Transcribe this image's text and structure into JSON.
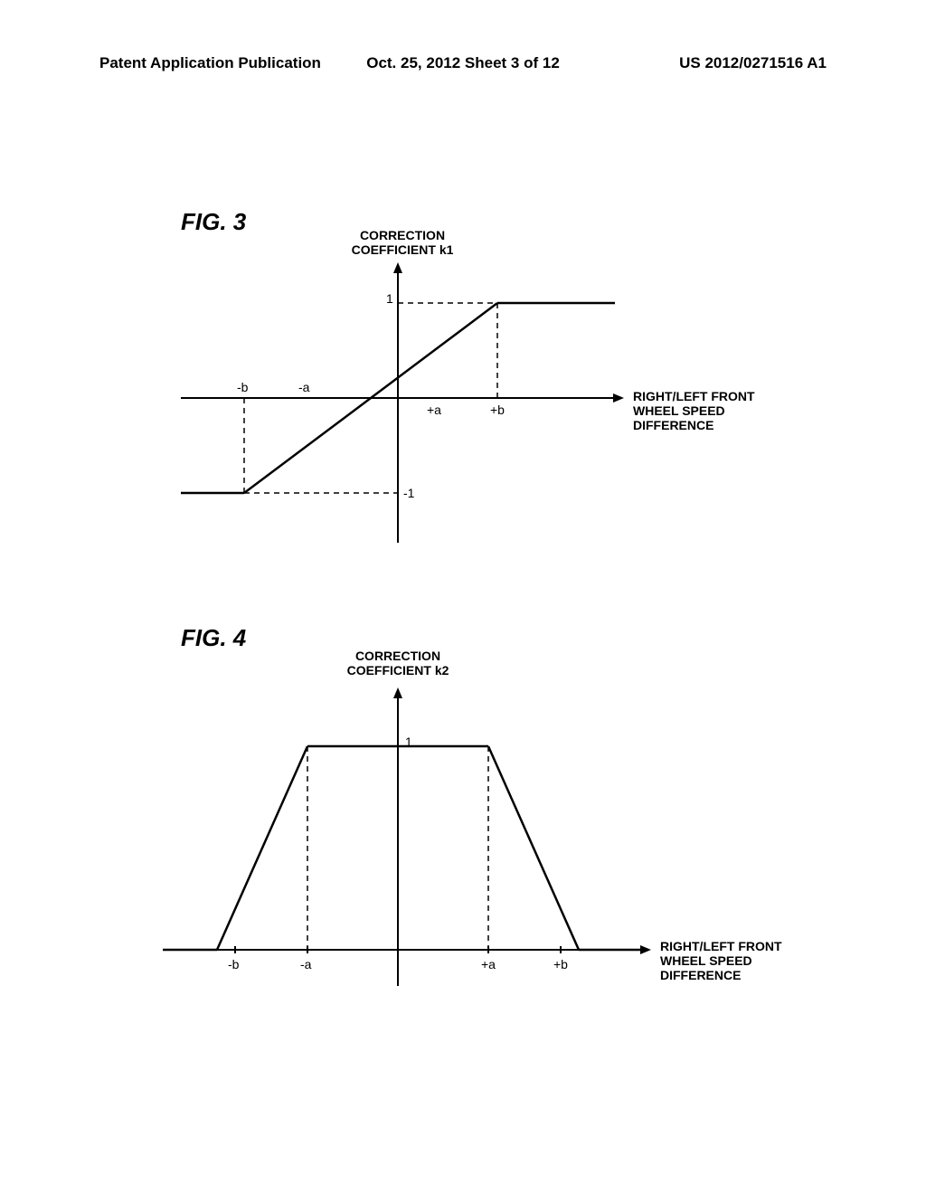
{
  "header": {
    "left": "Patent Application Publication",
    "mid": "Oct. 25, 2012  Sheet 3 of 12",
    "right": "US 2012/0271516 A1"
  },
  "fig3": {
    "label": "FIG. 3",
    "title": "CORRECTION\nCOEFFICIENT k1",
    "axis_label": "RIGHT/LEFT FRONT\nWHEEL SPEED\nDIFFERENCE",
    "y_tick_pos": "1",
    "y_tick_neg": "-1",
    "x_tick_neg_a": "-a",
    "x_tick_neg_b": "-b",
    "x_tick_pos_a": "+a",
    "x_tick_pos_b": "+b",
    "stroke_color": "#000000",
    "stroke_width": 2,
    "dash_color": "#000000"
  },
  "fig4": {
    "label": "FIG. 4",
    "title": "CORRECTION\nCOEFFICIENT k2",
    "axis_label": "RIGHT/LEFT FRONT\nWHEEL SPEED\nDIFFERENCE",
    "y_tick_pos": "1",
    "x_tick_neg_a": "-a",
    "x_tick_neg_b": "-b",
    "x_tick_pos_a": "+a",
    "x_tick_pos_b": "+b",
    "stroke_color": "#000000",
    "stroke_width": 2,
    "dash_color": "#000000"
  }
}
